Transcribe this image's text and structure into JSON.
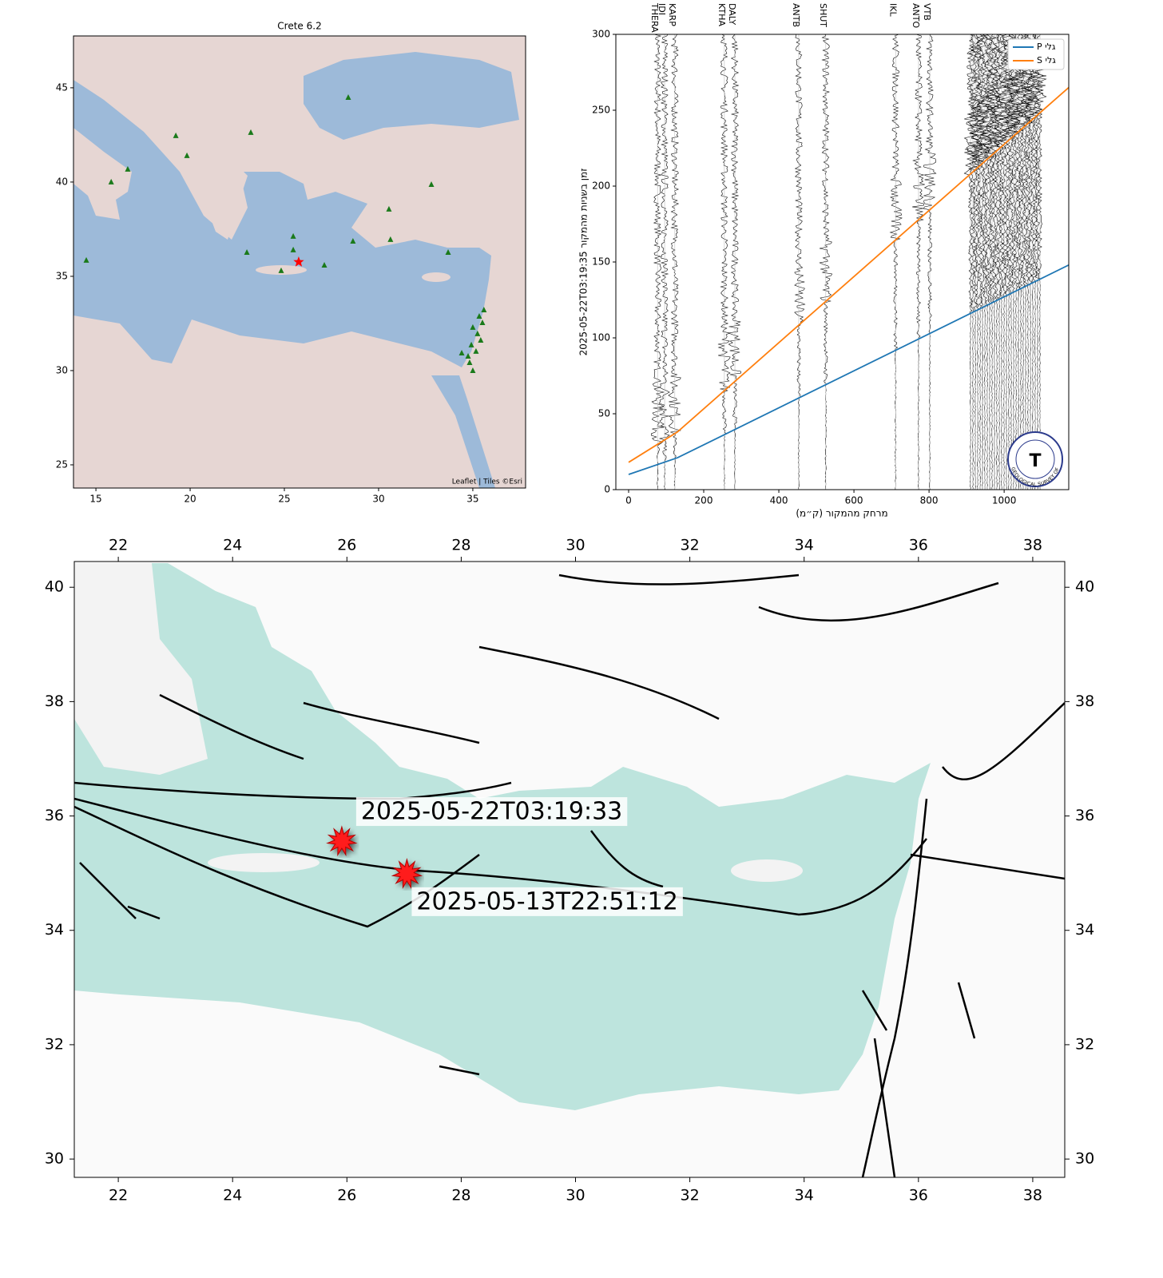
{
  "station_map": {
    "title": "Crete 6.2",
    "xlim": [
      13.81,
      37.8
    ],
    "ylim": [
      23.77,
      47.75
    ],
    "xticks": [
      15,
      20,
      25,
      30,
      35
    ],
    "yticks": [
      25,
      30,
      35,
      40,
      45
    ],
    "attribution": "Leaflet | Tiles ©Esri",
    "station_color": "#1a7a1a",
    "stations": {
      "lon": [
        28.39,
        23.22,
        19.24,
        19.83,
        16.69,
        15.81,
        32.8,
        30.55,
        14.49,
        25.47,
        23.01,
        25.47,
        28.64,
        30.63,
        27.12,
        33.69,
        24.83,
        35.59,
        35.34,
        35.51,
        35.0,
        35.25,
        35.42,
        34.92,
        35.17,
        34.75,
        34.83,
        34.41,
        35.0
      ],
      "lat": [
        44.49,
        42.63,
        42.46,
        41.4,
        40.68,
        40.0,
        39.87,
        38.56,
        35.85,
        37.12,
        36.27,
        36.4,
        36.86,
        36.95,
        35.59,
        36.27,
        35.3,
        33.22,
        32.88,
        32.54,
        32.29,
        31.95,
        31.61,
        31.36,
        31.02,
        30.76,
        30.42,
        30.93,
        30.0
      ]
    },
    "epicenter": {
      "lon": 25.76,
      "lat": 35.76,
      "color": "#ff0000"
    }
  },
  "chart_data": {
    "type": "line",
    "xlabel": "מרחק מהמקור (ק״מ)",
    "ylabel": "2025-05-22T03:19:35 זמן בשניות מהמקור",
    "xlim": [
      -34,
      1172
    ],
    "ylim": [
      0,
      300
    ],
    "xticks": [
      0,
      200,
      400,
      600,
      800,
      1000
    ],
    "yticks": [
      0,
      50,
      100,
      150,
      200,
      250,
      300
    ],
    "x": [
      0,
      130,
      1172
    ],
    "series": [
      {
        "name": "P גלי",
        "color": "#1f77b4",
        "values": [
          10,
          21,
          148
        ]
      },
      {
        "name": "S גלי",
        "color": "#ff7f0e",
        "values": [
          18,
          38,
          265
        ]
      }
    ],
    "stations": {
      "names": [
        "THERA",
        "IDI",
        "KARP",
        "KTHA",
        "DALY",
        "ANTB",
        "SHUT",
        "IKL",
        "ANTO",
        "VTB"
      ],
      "distance": [
        77,
        96,
        123,
        255,
        283,
        453,
        525,
        711,
        772,
        802
      ]
    },
    "logo_text": "GEOLOGICAL SURVEY OF ISRAEL"
  },
  "fault_map": {
    "xlim": [
      21.23,
      38.56
    ],
    "ylim": [
      29.68,
      40.45
    ],
    "xticks": [
      22,
      24,
      26,
      28,
      30,
      32,
      34,
      36,
      38
    ],
    "yticks": [
      30,
      32,
      34,
      36,
      38,
      40
    ],
    "events": [
      {
        "label": "2025-05-22T03:19:33",
        "lon": 25.91,
        "lat": 35.56
      },
      {
        "label": "2025-05-13T22:51:12",
        "lon": 27.05,
        "lat": 34.99
      }
    ]
  }
}
